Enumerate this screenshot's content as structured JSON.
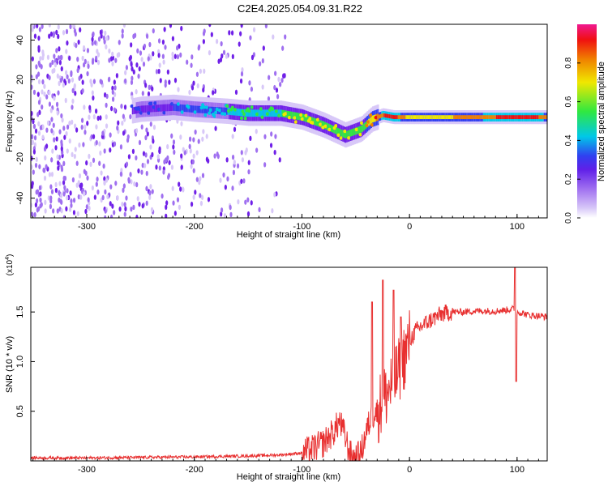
{
  "figure_title": "C2E4.2025.054.09.31.R22",
  "colors": {
    "snr_line": "#e83030",
    "spectrogram_palette": [
      "#ffffff",
      "#d8c8f8",
      "#a070f0",
      "#7020e8",
      "#3040f0",
      "#00c8e8",
      "#30e840",
      "#f0e800",
      "#f08000",
      "#f01010",
      "#f01890"
    ]
  },
  "chart_data": [
    {
      "type": "heatmap",
      "title": "",
      "xlabel": "Height of straight line (km)",
      "ylabel": "Frequency (Hz)",
      "xlim": [
        -352,
        128
      ],
      "ylim": [
        -50,
        48
      ],
      "x_ticks": [
        -300,
        -200,
        -100,
        0,
        100
      ],
      "x_tick_labels": [
        "-300",
        "-200",
        "-100",
        "0",
        "100"
      ],
      "y_ticks": [
        -40,
        -20,
        0,
        20,
        40
      ],
      "y_tick_labels": [
        "-40",
        "-20",
        "0",
        "20",
        "40"
      ],
      "colorbar": {
        "label": "Normalized spectral amplitude",
        "range": [
          0,
          1
        ],
        "ticks": [
          0.0,
          0.2,
          0.4,
          0.6,
          0.8
        ],
        "tick_labels": [
          "0.0",
          "0.2",
          "0.4",
          "0.6",
          "0.8"
        ]
      },
      "ridge": {
        "description_points_x": [
          -352,
          -260,
          -250,
          -220,
          -200,
          -170,
          -150,
          -120,
          -100,
          -80,
          -60,
          -45,
          -35,
          -25,
          -15,
          0,
          40,
          80,
          95,
          110,
          128
        ],
        "frequency_hz": [
          0,
          4,
          5,
          6,
          5,
          4,
          3,
          3,
          1,
          -3,
          -8,
          -5,
          0,
          2,
          1,
          1,
          1,
          1,
          1,
          1,
          1
        ],
        "amplitude": [
          0.1,
          0.25,
          0.3,
          0.35,
          0.4,
          0.45,
          0.5,
          0.55,
          0.55,
          0.6,
          0.6,
          0.6,
          0.7,
          0.85,
          0.9,
          0.7,
          0.75,
          0.85,
          0.9,
          0.9,
          0.8
        ]
      },
      "noise_region_x": [
        -352,
        -115
      ]
    },
    {
      "type": "line",
      "title": "",
      "xlabel": "Height of straight line (km)",
      "ylabel": "SNR (10 * v/v)",
      "y_scale_label": "(x10",
      "y_scale_exponent": "4",
      "xlim": [
        -352,
        128
      ],
      "ylim": [
        0,
        19500
      ],
      "x_ticks": [
        -300,
        -200,
        -100,
        0,
        100
      ],
      "x_tick_labels": [
        "-300",
        "-200",
        "-100",
        "0",
        "100"
      ],
      "y_ticks": [
        5000,
        10000,
        15000
      ],
      "y_tick_labels": [
        "0.5",
        "1.0",
        "1.5"
      ],
      "series": [
        {
          "x": [
            -352,
            -300,
            -250,
            -200,
            -150,
            -120,
            -100,
            -90,
            -80,
            -70,
            -65,
            -60,
            -55,
            -50,
            -45,
            -40,
            -35,
            -30,
            -25,
            -20,
            -15,
            -10,
            -5,
            0,
            5,
            10,
            20,
            30,
            40,
            50,
            60,
            70,
            80,
            90,
            95,
            98,
            100,
            105,
            110,
            120,
            128
          ],
          "y": [
            300,
            300,
            350,
            400,
            500,
            600,
            800,
            1200,
            1800,
            3000,
            4000,
            2500,
            600,
            300,
            800,
            3000,
            4500,
            5000,
            6000,
            7000,
            8000,
            9000,
            10500,
            12000,
            13000,
            13500,
            14200,
            14800,
            15000,
            15000,
            15100,
            15100,
            15100,
            15200,
            15300,
            15300,
            15000,
            14900,
            14700,
            14600,
            14500
          ],
          "spikes": [
            {
              "x": -35,
              "y": 16000
            },
            {
              "x": -25,
              "y": 18200
            },
            {
              "x": -15,
              "y": 17200
            },
            {
              "x": -8,
              "y": 14500
            },
            {
              "x": 98,
              "y": 19500
            },
            {
              "x": 99,
              "y": 8000
            }
          ]
        }
      ]
    }
  ]
}
